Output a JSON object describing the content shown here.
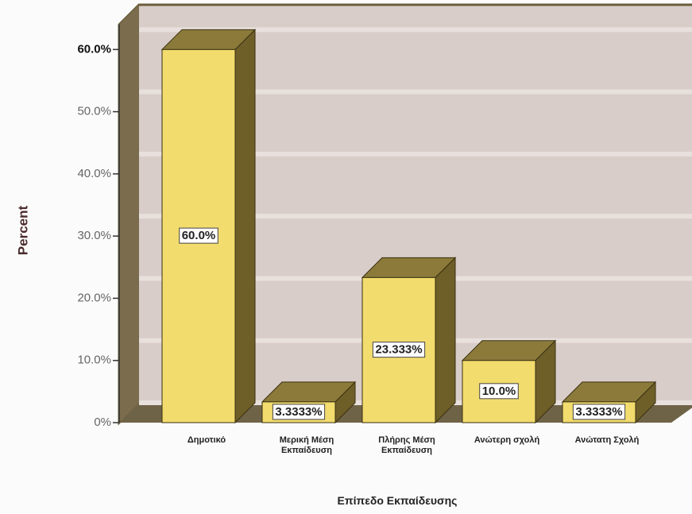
{
  "chart_data": {
    "type": "bar3d",
    "x_label": "Επίπεδο Εκπαίδευσης",
    "y_label": "Percent",
    "categories": [
      "Δημοτικό",
      "Μερική Μέση Εκπαίδευση",
      "Πλήρης Μέση Εκπαίδευση",
      "Ανώτερη σχολή",
      "Ανώτατη Σχολή"
    ],
    "values": [
      60.0,
      3.3333,
      23.333,
      10.0,
      3.3333
    ],
    "value_labels": [
      "60.0%",
      "3.3333%",
      "23.333%",
      "10.0%",
      "3.3333%"
    ],
    "color": "#f2dc6e",
    "ylim": [
      0,
      64
    ],
    "yticks": [
      {
        "value": 0,
        "label": "0%"
      },
      {
        "value": 10,
        "label": "10.0%"
      },
      {
        "value": 20,
        "label": "20.0%"
      },
      {
        "value": 30,
        "label": "30.0%"
      },
      {
        "value": 40,
        "label": "40.0%"
      },
      {
        "value": 50,
        "label": "50.0%"
      },
      {
        "value": 60,
        "label": "60.0%"
      }
    ],
    "grid": true
  }
}
